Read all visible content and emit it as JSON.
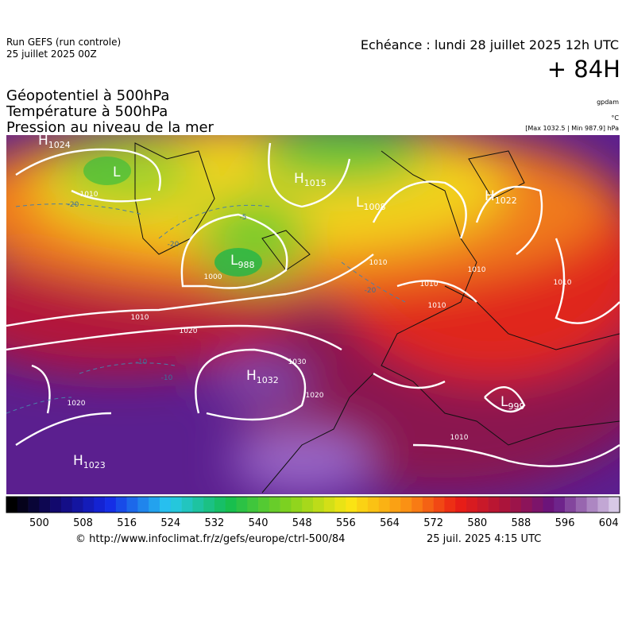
{
  "header": {
    "run": "Run GEFS (run controle)",
    "run_date": "25 juillet 2025 00Z",
    "valid": "Echéance : lundi 28 juillet 2025 12h UTC",
    "lead": "+ 84H"
  },
  "titles": [
    "Géopotentiel à 500hPa",
    "Température à 500hPa",
    "Pression au niveau de la mer"
  ],
  "units": {
    "geopotential": "gpdam",
    "temperature": "°C",
    "pressure": "[Max 1032.5 | Min 987.9] hPa"
  },
  "map": {
    "centers": [
      {
        "letter": "H",
        "value": "1024"
      },
      {
        "letter": "L",
        "value": ""
      },
      {
        "letter": "H",
        "value": "1015"
      },
      {
        "letter": "L",
        "value": "1008"
      },
      {
        "letter": "H",
        "value": "1022"
      },
      {
        "letter": "L",
        "value": "988"
      },
      {
        "letter": "H",
        "value": "1032"
      },
      {
        "letter": "H",
        "value": "1023"
      },
      {
        "letter": "L",
        "value": "999"
      }
    ],
    "isobar_labels": [
      "1010",
      "1000",
      "1010",
      "1020",
      "1030",
      "1020",
      "1020",
      "1010",
      "1010",
      "1010",
      "1010",
      "1010",
      "1010"
    ],
    "isotherm_labels": [
      "-20",
      "-20",
      "-10",
      "-10",
      "-5",
      "-20"
    ]
  },
  "colorbar": {
    "ticks": [
      500,
      508,
      516,
      524,
      532,
      540,
      548,
      556,
      564,
      572,
      580,
      588,
      596,
      604
    ]
  },
  "footer": {
    "source": "© http://www.infoclimat.fr/z/gefs/europe/ctrl-500/84",
    "generated": "25 juil. 2025  4:15 UTC"
  }
}
